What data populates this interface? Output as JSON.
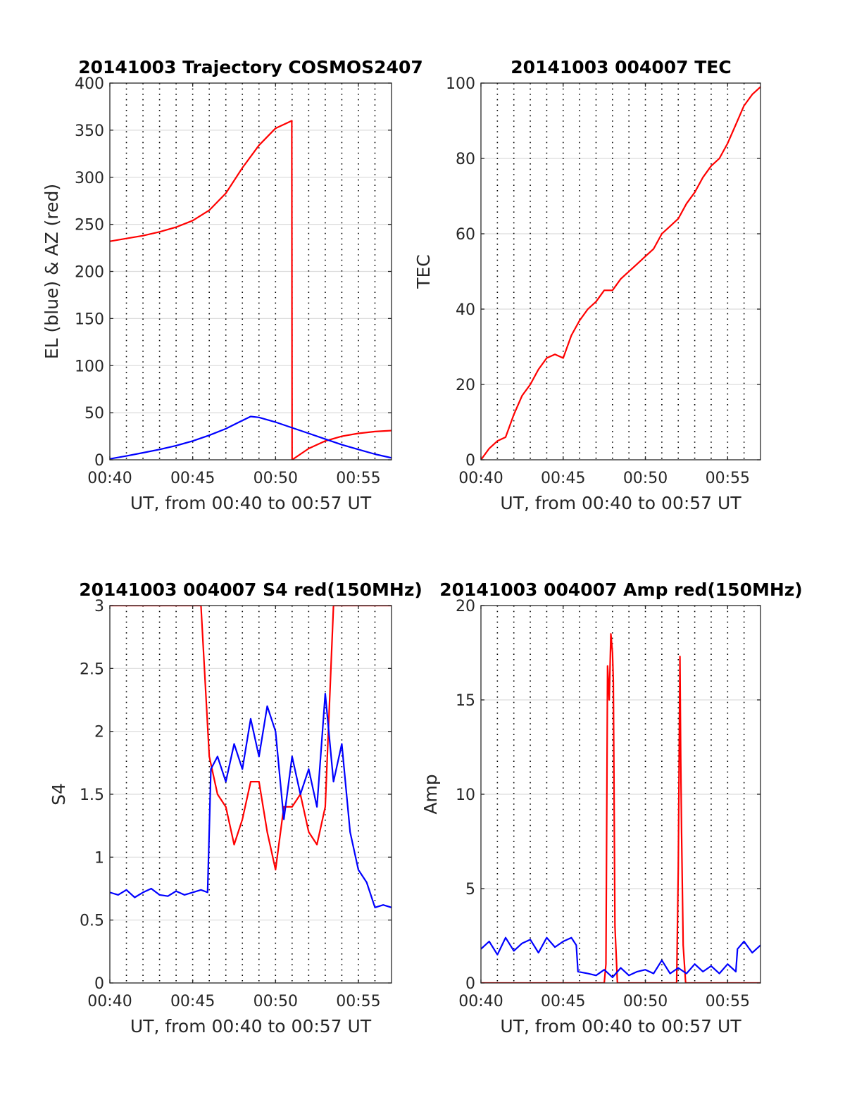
{
  "colors": {
    "red": "#ff0000",
    "blue": "#0000ff",
    "axis": "#262626",
    "grid": "#dcdcdc"
  },
  "chart_data": [
    {
      "type": "line",
      "title": "20141003 Trajectory COSMOS2407",
      "xlabel": "UT, from 00:40 to 00:57 UT",
      "ylabel": "EL (blue) & AZ (red)",
      "xlim": [
        0,
        17
      ],
      "ylim": [
        0,
        400
      ],
      "xticks": [
        0,
        5,
        10,
        15
      ],
      "xticklabels": [
        "00:40",
        "00:45",
        "00:50",
        "00:55"
      ],
      "yticks": [
        0,
        50,
        100,
        150,
        200,
        250,
        300,
        350,
        400
      ],
      "yticklabels": [
        "0",
        "50",
        "100",
        "150",
        "200",
        "250",
        "300",
        "350",
        "400"
      ],
      "grid": true,
      "series": [
        {
          "color": "#ff0000",
          "x": [
            0,
            1,
            2,
            3,
            4,
            5,
            6,
            7,
            8,
            9,
            10,
            10.98,
            11.0,
            12,
            13,
            14,
            15,
            16,
            17
          ],
          "y": [
            232,
            235,
            238,
            242,
            247,
            254,
            265,
            283,
            310,
            334,
            352,
            360,
            0,
            12,
            20,
            25,
            28,
            30,
            31
          ]
        },
        {
          "color": "#0000ff",
          "x": [
            0,
            1,
            2,
            3,
            4,
            5,
            6,
            7,
            7.8,
            8.5,
            9,
            10,
            11,
            12,
            13,
            14,
            15,
            16,
            17
          ],
          "y": [
            1,
            4,
            7.5,
            11,
            15,
            20,
            26,
            33,
            40,
            46,
            45,
            40,
            34,
            28,
            22,
            16,
            11,
            6,
            2
          ]
        }
      ]
    },
    {
      "type": "line",
      "title": "20141003 004007 TEC",
      "xlabel": "UT, from 00:40 to 00:57 UT",
      "ylabel": "TEC",
      "xlim": [
        0,
        17
      ],
      "ylim": [
        0,
        100
      ],
      "xticks": [
        0,
        5,
        10,
        15
      ],
      "xticklabels": [
        "00:40",
        "00:45",
        "00:50",
        "00:55"
      ],
      "yticks": [
        0,
        20,
        40,
        60,
        80,
        100
      ],
      "yticklabels": [
        "0",
        "20",
        "40",
        "60",
        "80",
        "100"
      ],
      "grid": true,
      "series": [
        {
          "color": "#ff0000",
          "x": [
            0,
            0.5,
            1,
            1.5,
            2,
            2.5,
            3,
            3.5,
            4,
            4.5,
            5,
            5.5,
            6,
            6.5,
            7,
            7.5,
            8,
            8.5,
            9,
            9.5,
            10,
            10.5,
            11,
            11.5,
            12,
            12.5,
            13,
            13.5,
            14,
            14.5,
            15,
            15.5,
            16,
            16.5,
            17
          ],
          "y": [
            0,
            3,
            5,
            6,
            12,
            17,
            20,
            24,
            27,
            28,
            27,
            33,
            37,
            40,
            42,
            45,
            45,
            48,
            50,
            52,
            54,
            56,
            60,
            62,
            64,
            68,
            71,
            75,
            78,
            80,
            84,
            89,
            94,
            97,
            99
          ]
        }
      ]
    },
    {
      "type": "line",
      "title": "20141003 004007 S4 red(150MHz)",
      "xlabel": "UT, from 00:40 to 00:57 UT",
      "ylabel": "S4",
      "xlim": [
        0,
        17
      ],
      "ylim": [
        0,
        3
      ],
      "xticks": [
        0,
        5,
        10,
        15
      ],
      "xticklabels": [
        "00:40",
        "00:45",
        "00:50",
        "00:55"
      ],
      "yticks": [
        0,
        0.5,
        1,
        1.5,
        2,
        2.5,
        3
      ],
      "yticklabels": [
        "0",
        "0.5",
        "1",
        "1.5",
        "2",
        "2.5",
        "3"
      ],
      "grid": true,
      "series": [
        {
          "color": "#ff0000",
          "x": [
            0,
            0.5,
            1,
            1.5,
            2,
            2.5,
            3,
            3.5,
            4,
            4.5,
            5,
            5.5,
            6,
            6.5,
            7,
            7.5,
            8,
            8.5,
            9,
            9.5,
            10,
            10.5,
            11,
            11.5,
            12,
            12.5,
            13,
            13.5,
            14,
            14.5,
            15,
            15.5,
            16,
            16.5,
            17
          ],
          "y": [
            3,
            3,
            3,
            3,
            3,
            3,
            3,
            3,
            3,
            3,
            3,
            3,
            1.8,
            1.5,
            1.4,
            1.1,
            1.3,
            1.6,
            1.6,
            1.2,
            0.9,
            1.4,
            1.4,
            1.5,
            1.2,
            1.1,
            1.4,
            3,
            3,
            3,
            3,
            3,
            3,
            3,
            3
          ]
        },
        {
          "color": "#0000ff",
          "x": [
            0,
            0.5,
            1,
            1.5,
            2,
            2.5,
            3,
            3.5,
            4,
            4.5,
            5,
            5.5,
            5.9,
            6.1,
            6.5,
            7,
            7.5,
            8,
            8.5,
            9,
            9.5,
            10,
            10.5,
            11,
            11.5,
            12,
            12.5,
            13,
            13.5,
            14,
            14.5,
            15,
            15.5,
            16,
            16.5,
            17
          ],
          "y": [
            0.72,
            0.7,
            0.74,
            0.68,
            0.72,
            0.75,
            0.7,
            0.69,
            0.73,
            0.7,
            0.72,
            0.74,
            0.72,
            1.7,
            1.8,
            1.6,
            1.9,
            1.7,
            2.1,
            1.8,
            2.2,
            2.0,
            1.3,
            1.8,
            1.5,
            1.7,
            1.4,
            2.3,
            1.6,
            1.9,
            1.2,
            0.9,
            0.8,
            0.6,
            0.62,
            0.6
          ]
        }
      ]
    },
    {
      "type": "line",
      "title": "20141003 004007 Amp red(150MHz)",
      "xlabel": "UT, from 00:40 to 00:57 UT",
      "ylabel": "Amp",
      "xlim": [
        0,
        17
      ],
      "ylim": [
        0,
        20
      ],
      "xticks": [
        0,
        5,
        10,
        15
      ],
      "xticklabels": [
        "00:40",
        "00:45",
        "00:50",
        "00:55"
      ],
      "yticks": [
        0,
        5,
        10,
        15,
        20
      ],
      "yticklabels": [
        "0",
        "5",
        "10",
        "15",
        "20"
      ],
      "grid": true,
      "series": [
        {
          "color": "#ff0000",
          "x": [
            0,
            7.5,
            7.6,
            7.7,
            7.8,
            7.9,
            8.0,
            8.05,
            8.15,
            8.3,
            11.9,
            12.0,
            12.05,
            12.1,
            12.15,
            12.2,
            12.3,
            12.45,
            17
          ],
          "y": [
            0,
            0,
            1,
            16.8,
            15,
            18.5,
            17.5,
            16,
            3,
            0,
            0,
            6,
            11.5,
            17.3,
            12,
            8,
            2,
            0,
            0
          ]
        },
        {
          "color": "#0000ff",
          "x": [
            0,
            0.5,
            1,
            1.5,
            2,
            2.5,
            3,
            3.5,
            4,
            4.5,
            5,
            5.5,
            5.8,
            5.9,
            6.5,
            7,
            7.5,
            8,
            8.5,
            9,
            9.5,
            10,
            10.5,
            11,
            11.5,
            12,
            12.5,
            13,
            13.5,
            14,
            14.5,
            15,
            15.5,
            15.6,
            16,
            16.5,
            17
          ],
          "y": [
            1.8,
            2.2,
            1.5,
            2.4,
            1.7,
            2.1,
            2.3,
            1.6,
            2.4,
            1.9,
            2.2,
            2.4,
            2.0,
            0.6,
            0.5,
            0.4,
            0.7,
            0.3,
            0.8,
            0.4,
            0.6,
            0.7,
            0.5,
            1.2,
            0.5,
            0.8,
            0.5,
            1.0,
            0.6,
            0.9,
            0.5,
            1.0,
            0.6,
            1.8,
            2.2,
            1.6,
            2.0
          ]
        }
      ]
    }
  ]
}
